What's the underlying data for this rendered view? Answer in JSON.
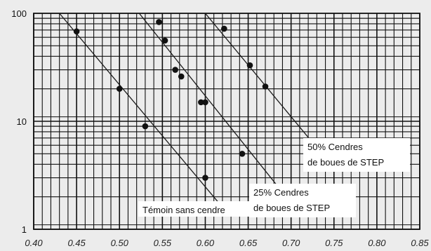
{
  "chart_data": {
    "type": "scatter",
    "title": "",
    "xlabel": "",
    "ylabel": "",
    "xlim": [
      0.4,
      0.85
    ],
    "ylim": [
      1,
      100
    ],
    "yscale": "log",
    "grid": true,
    "xticks": [
      "0.40",
      "0.45",
      "0.50",
      "0.55",
      "0.60",
      "0.65",
      "0.70",
      "0.75",
      "0.80",
      "0.85"
    ],
    "yticks": [
      "1",
      "10",
      "100"
    ],
    "series": [
      {
        "name": "Témoin sans cendre",
        "points": [
          [
            0.45,
            68
          ],
          [
            0.5,
            20
          ],
          [
            0.53,
            9
          ],
          [
            0.6,
            3
          ]
        ],
        "trend": [
          [
            0.43,
            100
          ],
          [
            0.62,
            1.6
          ]
        ],
        "label_lines": [
          "Témoin sans cendre"
        ]
      },
      {
        "name": "25% Cendres de boues de STEP",
        "points": [
          [
            0.546,
            83
          ],
          [
            0.553,
            56
          ],
          [
            0.565,
            30
          ],
          [
            0.572,
            26
          ],
          [
            0.595,
            15
          ],
          [
            0.6,
            15
          ],
          [
            0.643,
            5
          ]
        ],
        "trend": [
          [
            0.523,
            100
          ],
          [
            0.69,
            2.2
          ]
        ],
        "label_lines": [
          "25% Cendres",
          "de boues de STEP"
        ]
      },
      {
        "name": "50% Cendres de boues de STEP",
        "points": [
          [
            0.622,
            72
          ],
          [
            0.652,
            33
          ],
          [
            0.67,
            21
          ]
        ],
        "trend": [
          [
            0.6,
            100
          ],
          [
            0.72,
            7.1
          ]
        ],
        "label_lines": [
          "50% Cendres",
          "de boues de STEP"
        ]
      }
    ]
  }
}
